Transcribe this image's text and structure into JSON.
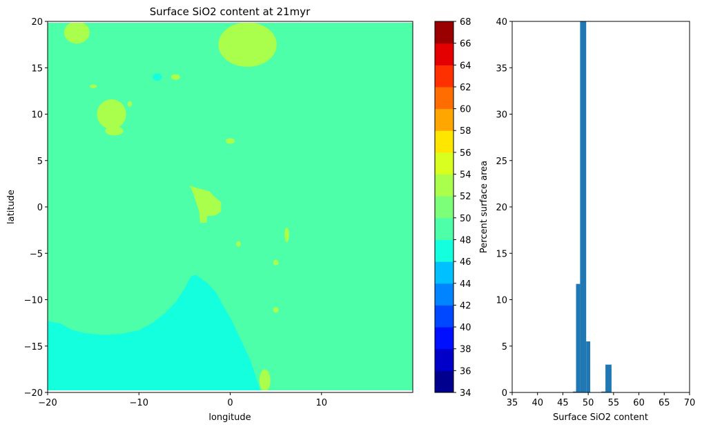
{
  "chart_data": [
    {
      "type": "heatmap",
      "title": "Surface SiO2 content at 21myr",
      "xlabel": "longitude",
      "ylabel": "latitude",
      "xlim": [
        -20,
        20
      ],
      "ylim": [
        -20,
        20
      ],
      "xticks": [
        -20,
        -10,
        0,
        10
      ],
      "yticks": [
        -20,
        -15,
        -10,
        -5,
        0,
        5,
        10,
        15,
        20
      ],
      "background_value": 49,
      "regions": [
        {
          "value": 47,
          "color": "#13ffde",
          "description_units": "lon/lat",
          "polygon": [
            [
              -20,
              -12.3
            ],
            [
              -18.5,
              -12.6
            ],
            [
              -17.5,
              -13.2
            ],
            [
              -16,
              -13.6
            ],
            [
              -14,
              -13.8
            ],
            [
              -12,
              -13.7
            ],
            [
              -10,
              -13.3
            ],
            [
              -8.5,
              -12.5
            ],
            [
              -7.2,
              -11.5
            ],
            [
              -6,
              -10.3
            ],
            [
              -5,
              -8.8
            ],
            [
              -4.3,
              -7.5
            ],
            [
              -3.8,
              -7.3
            ],
            [
              -2.5,
              -8.2
            ],
            [
              -1.5,
              -9.3
            ],
            [
              -0.8,
              -10.6
            ],
            [
              0.2,
              -12.3
            ],
            [
              1.2,
              -14.4
            ],
            [
              2.2,
              -16.5
            ],
            [
              2.8,
              -18.3
            ],
            [
              3.3,
              -19.8
            ],
            [
              -20,
              -19.8
            ]
          ]
        },
        {
          "value": 52,
          "color": "#aaff4d",
          "shape": "ellipse",
          "cx": 1.9,
          "cy": 17.5,
          "rx": 3.2,
          "ry": 2.4
        },
        {
          "value": 52,
          "color": "#aaff4d",
          "shape": "ellipse",
          "cx": -16.8,
          "cy": 18.8,
          "rx": 1.4,
          "ry": 1.2
        },
        {
          "value": 52,
          "color": "#aaff4d",
          "shape": "ellipse",
          "cx": -13.0,
          "cy": 10.0,
          "rx": 1.6,
          "ry": 1.6
        },
        {
          "value": 52,
          "color": "#aaff4d",
          "shape": "ellipse",
          "cx": -12.7,
          "cy": 8.2,
          "rx": 1.0,
          "ry": 0.5
        },
        {
          "value": 52,
          "color": "#aaff4d",
          "shape": "polygon",
          "polygon": [
            [
              -4.5,
              2.3
            ],
            [
              -3.5,
              2.0
            ],
            [
              -2.3,
              1.7
            ],
            [
              -1.6,
              1.0
            ],
            [
              -1.0,
              0.5
            ],
            [
              -1.0,
              -0.5
            ],
            [
              -1.6,
              -0.9
            ],
            [
              -2.5,
              -1.0
            ],
            [
              -2.6,
              -1.7
            ],
            [
              -3.3,
              -1.7
            ],
            [
              -3.4,
              -0.5
            ],
            [
              -3.9,
              1.0
            ],
            [
              -4.2,
              1.8
            ]
          ]
        },
        {
          "value": 52,
          "color": "#aaff4d",
          "shape": "ellipse",
          "cx": 3.8,
          "cy": -18.7,
          "rx": 0.6,
          "ry": 1.2
        },
        {
          "value": 52,
          "color": "#aaff4d",
          "shape": "ellipse",
          "cx": 6.2,
          "cy": -3.0,
          "rx": 0.25,
          "ry": 0.8
        },
        {
          "value": 52,
          "color": "#aaff4d",
          "shape": "ellipse",
          "cx": 0.0,
          "cy": 7.1,
          "rx": 0.5,
          "ry": 0.3
        },
        {
          "value": 52,
          "color": "#aaff4d",
          "shape": "ellipse",
          "cx": -6.0,
          "cy": 14.0,
          "rx": 0.5,
          "ry": 0.3
        },
        {
          "value": 52,
          "color": "#aaff4d",
          "shape": "ellipse",
          "cx": -15.0,
          "cy": 13.0,
          "rx": 0.4,
          "ry": 0.2
        },
        {
          "value": 52,
          "color": "#aaff4d",
          "shape": "ellipse",
          "cx": -11.0,
          "cy": 11.1,
          "rx": 0.25,
          "ry": 0.3
        },
        {
          "value": 52,
          "color": "#aaff4d",
          "shape": "ellipse",
          "cx": 0.9,
          "cy": -4.0,
          "rx": 0.25,
          "ry": 0.3
        },
        {
          "value": 52,
          "color": "#aaff4d",
          "shape": "ellipse",
          "cx": 5.0,
          "cy": -6.0,
          "rx": 0.3,
          "ry": 0.3
        },
        {
          "value": 52,
          "color": "#aaff4d",
          "shape": "ellipse",
          "cx": 5.0,
          "cy": -11.1,
          "rx": 0.3,
          "ry": 0.3
        },
        {
          "value": 47,
          "color": "#13ffde",
          "shape": "ellipse",
          "cx": -8.0,
          "cy": 14.0,
          "rx": 0.5,
          "ry": 0.4
        }
      ]
    },
    {
      "type": "colorbar",
      "ticks": [
        34,
        36,
        38,
        40,
        42,
        44,
        46,
        48,
        50,
        52,
        54,
        56,
        58,
        60,
        62,
        64,
        66,
        68
      ],
      "levels": [
        34,
        36,
        38,
        40,
        42,
        44,
        46,
        48,
        50,
        52,
        54,
        56,
        58,
        60,
        62,
        64,
        66,
        68
      ],
      "colors": [
        "#00008f",
        "#0000c8",
        "#0010ff",
        "#0048ff",
        "#0084ff",
        "#00c0ff",
        "#13ffde",
        "#4dffa8",
        "#7cff79",
        "#aaff4d",
        "#d8ff1f",
        "#ffe600",
        "#ffa600",
        "#ff6d00",
        "#ff3000",
        "#e40000",
        "#9a0000"
      ]
    },
    {
      "type": "bar",
      "title": "",
      "xlabel": "Surface SiO2 content",
      "ylabel": "Percent surface area",
      "xlim": [
        35,
        70
      ],
      "ylim": [
        0,
        40
      ],
      "xticks": [
        35,
        40,
        45,
        50,
        55,
        60,
        65,
        70
      ],
      "yticks": [
        0,
        5,
        10,
        15,
        20,
        25,
        30,
        35,
        40
      ],
      "bar_color": "#1f77b4",
      "bins": [
        {
          "x0": 47.0,
          "x1": 47.6,
          "value": 0.1
        },
        {
          "x0": 47.6,
          "x1": 48.4,
          "value": 11.7
        },
        {
          "x0": 48.4,
          "x1": 49.6,
          "value": 40
        },
        {
          "x0": 49.6,
          "x1": 50.4,
          "value": 5.5
        },
        {
          "x0": 52.6,
          "x1": 53.4,
          "value": 0.1
        },
        {
          "x0": 53.4,
          "x1": 54.6,
          "value": 3.0
        }
      ]
    }
  ]
}
